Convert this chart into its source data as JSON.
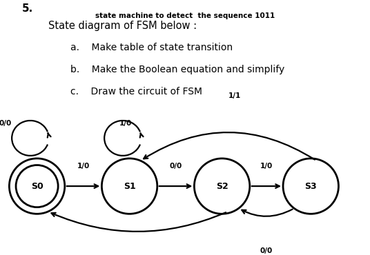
{
  "title_number": "5.",
  "title_text": "State diagram of FSM below :",
  "items": [
    "a.    Make table of state transition",
    "b.    Make the Boolean equation and simplify",
    "c.    Draw the circuit of FSM"
  ],
  "diagram_title": "state machine to detect  the sequence 1011",
  "states": [
    "S0",
    "S1",
    "S2",
    "S3"
  ],
  "sx": [
    0.1,
    0.35,
    0.6,
    0.84
  ],
  "sy": [
    0.5,
    0.5,
    0.5,
    0.5
  ],
  "r": 0.075,
  "bg_color": "#ffffff",
  "text_color": "#000000",
  "lw": 1.6
}
